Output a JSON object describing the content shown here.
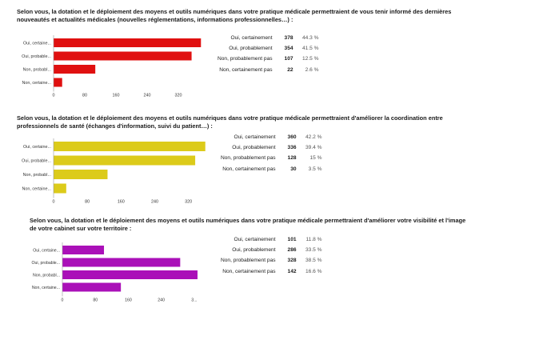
{
  "chart_data": [
    {
      "type": "bar",
      "orientation": "horizontal",
      "title_lines": [
        "Selon vous, la dotation et le déploiement des moyens et outils numériques dans votre pratique médicale permettraient de vous tenir informé des dernières",
        "nouveautés et actualités médicales (nouvelles réglementations, informations professionnelles…) :"
      ],
      "color": "#e01010",
      "categories": [
        "Oui, certaine...",
        "Oui, probable...",
        "Non, probabl...",
        "Non, certaine..."
      ],
      "values": [
        378,
        354,
        107,
        22
      ],
      "ticks": [
        "0",
        "80",
        "160",
        "240",
        "320"
      ],
      "xlim": [
        0,
        400
      ],
      "grid": false,
      "stats": [
        {
          "label": "Oui, certainement",
          "count": "378",
          "pct": "44.3 %"
        },
        {
          "label": "Oui, probablement",
          "count": "354",
          "pct": "41.5 %"
        },
        {
          "label": "Non, probablement pas",
          "count": "107",
          "pct": "12.5 %"
        },
        {
          "label": "Non, certainement pas",
          "count": "22",
          "pct": "2.6 %"
        }
      ]
    },
    {
      "type": "bar",
      "orientation": "horizontal",
      "title_lines": [
        "Selon vous, la dotation et le déploiement des moyens et outils numériques dans votre pratique médicale permettraient d'améliorer la coordination entre",
        "professionnels de santé (échanges d'information, suivi du patient…) :"
      ],
      "color": "#dccb1a",
      "categories": [
        "Oui, certaine...",
        "Oui, probable...",
        "Non, probabl...",
        "Non, certaine..."
      ],
      "values": [
        360,
        336,
        128,
        30
      ],
      "ticks": [
        "0",
        "80",
        "160",
        "240",
        "320"
      ],
      "xlim": [
        0,
        370
      ],
      "grid": false,
      "stats": [
        {
          "label": "Oui, certainement",
          "count": "360",
          "pct": "42.2 %"
        },
        {
          "label": "Oui, probablement",
          "count": "336",
          "pct": "39.4 %"
        },
        {
          "label": "Non, probablement pas",
          "count": "128",
          "pct": "15 %"
        },
        {
          "label": "Non, certainement pas",
          "count": "30",
          "pct": "3.5 %"
        }
      ]
    },
    {
      "type": "bar",
      "orientation": "horizontal",
      "title_lines": [
        "Selon vous, la dotation et le déploiement des moyens et outils numériques dans votre pratique médicale permettraient d'améliorer votre visibilité et l'image",
        "de votre cabinet sur votre territoire :"
      ],
      "color": "#aa10b8",
      "categories": [
        "Oui, certaine...",
        "Oui, probable...",
        "Non, probabl...",
        "Non, certaine..."
      ],
      "values": [
        101,
        286,
        328,
        142
      ],
      "ticks": [
        "0",
        "80",
        "160",
        "240",
        "3..."
      ],
      "xlim": [
        0,
        330
      ],
      "grid": false,
      "stats": [
        {
          "label": "Oui, certainement",
          "count": "101",
          "pct": "11.8 %"
        },
        {
          "label": "Oui, probablement",
          "count": "286",
          "pct": "33.5 %"
        },
        {
          "label": "Non, probablement pas",
          "count": "328",
          "pct": "38.5 %"
        },
        {
          "label": "Non, certainement pas",
          "count": "142",
          "pct": "16.6 %"
        }
      ]
    }
  ]
}
